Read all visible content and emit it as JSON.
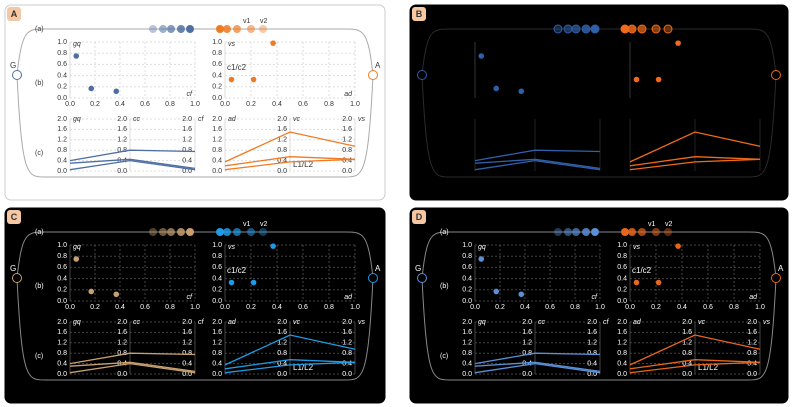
{
  "figure": {
    "row_labels": [
      "(a)",
      "(b)",
      "(c)"
    ],
    "nodes": {
      "left": "G",
      "right": "A"
    },
    "top_labels": [
      "v1",
      "v2"
    ],
    "cluster_label": "c1/c2",
    "line_label": "L1/L2",
    "scatter": [
      {
        "x_label": "cf",
        "y_label": "gq",
        "x": [
          0.05,
          0.17,
          0.37
        ],
        "y": [
          0.75,
          0.17,
          0.12
        ]
      },
      {
        "x_label": "ad",
        "y_label": "vs",
        "x": [
          0.37,
          0.05,
          0.22
        ],
        "y": [
          0.98,
          0.33,
          0.33
        ]
      }
    ],
    "xlim": [
      0,
      1
    ],
    "ylim": [
      0,
      1
    ],
    "xticks": [
      {
        "value": 0,
        "label": "0.0"
      },
      {
        "value": 0.2,
        "label": "0.2"
      },
      {
        "value": 0.4,
        "label": "0.4"
      },
      {
        "value": 0.6,
        "label": "0.6"
      },
      {
        "value": 0.8,
        "label": "0.8"
      },
      {
        "value": 1,
        "label": "1.0"
      }
    ],
    "yticks": [
      {
        "value": 0,
        "label": "0.0"
      },
      {
        "value": 0.2,
        "label": "0.2"
      },
      {
        "value": 0.4,
        "label": "0.4"
      },
      {
        "value": 0.6,
        "label": "0.6"
      },
      {
        "value": 0.8,
        "label": "0.8"
      },
      {
        "value": 1,
        "label": "1.0"
      }
    ],
    "parallel": [
      {
        "axes": [
          "gq",
          "cc",
          "cf"
        ],
        "lines": [
          [
            0.4,
            0.8,
            0.75
          ],
          [
            0.3,
            0.45,
            0.1
          ],
          [
            0.05,
            0.4,
            0.05
          ]
        ]
      },
      {
        "axes": [
          "ad",
          "vc",
          "vs"
        ],
        "lines": [
          [
            0.35,
            1.5,
            0.95
          ],
          [
            0.2,
            0.55,
            0.45
          ],
          [
            0.05,
            0.35,
            0.45
          ]
        ]
      }
    ],
    "plim": [
      0,
      2
    ],
    "pticks": [
      {
        "value": 0,
        "label": "0.0"
      },
      {
        "value": 0.4,
        "label": "0.4"
      },
      {
        "value": 0.8,
        "label": "0.8"
      },
      {
        "value": 1.2,
        "label": "1.2"
      },
      {
        "value": 1.6,
        "label": "1.6"
      },
      {
        "value": 2,
        "label": "2.0"
      }
    ]
  },
  "panels": [
    {
      "letter": "A",
      "show_text": true,
      "background": "#ffffff",
      "border": "#cccccc",
      "text": "#333333",
      "line": "#aaaaaa",
      "grid": "#dddddd",
      "left": "#4f6fa3",
      "right": "#f07a22"
    },
    {
      "letter": "B",
      "show_text": false,
      "background": "#000000",
      "border": "#000000",
      "text": "#ffffff",
      "line": "#2a2a2a",
      "grid": "#222222",
      "left": "#2f5fa8",
      "right": "#f06a1a"
    },
    {
      "letter": "C",
      "show_text": true,
      "background": "#000000",
      "border": "#000000",
      "text": "#ffffff",
      "line": "#888888",
      "grid": "#444444",
      "left": "#c8a070",
      "right": "#1e9be6"
    },
    {
      "letter": "D",
      "show_text": true,
      "background": "#000000",
      "border": "#000000",
      "text": "#ffffff",
      "line": "#888888",
      "grid": "#444444",
      "left": "#5b8fd6",
      "right": "#e8661c"
    }
  ]
}
